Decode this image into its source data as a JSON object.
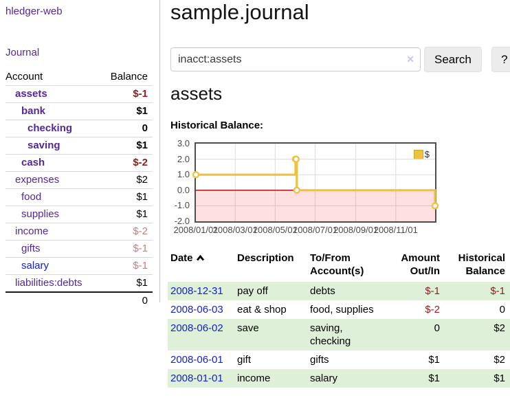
{
  "app": {
    "brand": "hledger-web",
    "nav_journal": "Journal"
  },
  "sidebar": {
    "header": {
      "account": "Account",
      "balance": "Balance"
    },
    "accounts": [
      {
        "name": "assets",
        "indent": 1,
        "balance": "$-1",
        "bold": true
      },
      {
        "name": "bank",
        "indent": 2,
        "balance": "$1",
        "bold": true
      },
      {
        "name": "checking",
        "indent": 3,
        "balance": "0",
        "bold": true
      },
      {
        "name": "saving",
        "indent": 3,
        "balance": "$1",
        "bold": true
      },
      {
        "name": "cash",
        "indent": 2,
        "balance": "$-2",
        "bold": true
      },
      {
        "name": "expenses",
        "indent": 1,
        "balance": "$2"
      },
      {
        "name": "food",
        "indent": 2,
        "balance": "$1"
      },
      {
        "name": "supplies",
        "indent": 2,
        "balance": "$1"
      },
      {
        "name": "income",
        "indent": 1,
        "balance": "$-2"
      },
      {
        "name": "gifts",
        "indent": 2,
        "balance": "$-1"
      },
      {
        "name": "salary",
        "indent": 2,
        "balance": "$-1",
        "unvisited": true
      },
      {
        "name": "liabilities:debts",
        "indent": 1,
        "balance": "$1"
      }
    ],
    "total": "0"
  },
  "header": {
    "title": "sample.journal"
  },
  "search": {
    "value": "inacct:assets",
    "clear_icon": "✕",
    "button_label": "Search",
    "help_label": "?"
  },
  "account_page": {
    "heading": "assets",
    "chart_label": "Historical Balance:"
  },
  "chart_data": {
    "type": "line",
    "title": "Historical Balance",
    "series": [
      {
        "name": "$",
        "color": "#edc240",
        "steps": true,
        "points": [
          [
            "2008-01-01",
            1
          ],
          [
            "2008-06-01",
            2
          ],
          [
            "2008-06-02",
            2
          ],
          [
            "2008-06-03",
            0
          ],
          [
            "2008-12-31",
            -1
          ]
        ]
      }
    ],
    "x_range": [
      "2008-01-01",
      "2008-12-31"
    ],
    "x_ticks": [
      "2008/01/01",
      "2008/03/01",
      "2008/05/01",
      "2008/07/01",
      "2008/09/01",
      "2008/11/01"
    ],
    "y_ticks": [
      3.0,
      2.0,
      1.0,
      0.0,
      -1.0,
      -2.0
    ],
    "ylim": [
      -2,
      3
    ],
    "grid": true,
    "legend": {
      "label": "$",
      "position": "top-right"
    },
    "grid_color": "#dcdcdc",
    "zero_line_color": "#a40000",
    "negative_region_color": "rgba(255,0,0,0.12)"
  },
  "register": {
    "headers": {
      "date": "Date",
      "description": "Description",
      "account": "To/From Account(s)",
      "amount": "Amount Out/In",
      "balance": "Historical Balance"
    },
    "rows": [
      {
        "date": "2008-12-31",
        "description": "pay off",
        "accounts": "debts",
        "amount": "$-1",
        "balance": "$-1"
      },
      {
        "date": "2008-06-03",
        "description": "eat & shop",
        "accounts": "food, supplies",
        "amount": "$-2",
        "balance": "0"
      },
      {
        "date": "2008-06-02",
        "description": "save",
        "accounts": "saving, checking",
        "amount": "0",
        "balance": "$2"
      },
      {
        "date": "2008-06-01",
        "description": "gift",
        "accounts": "gifts",
        "amount": "$1",
        "balance": "$2"
      },
      {
        "date": "2008-01-01",
        "description": "income",
        "accounts": "salary",
        "amount": "$1",
        "balance": "$1"
      }
    ]
  },
  "colors": {
    "accent_purple": "#55279b",
    "link_blue": "#1420d2",
    "negative_strong": "#8f1d1d",
    "negative_weak": "#c08080",
    "row_green": "#dff0d8",
    "chart_gold": "#edc240",
    "zero_line_red": "#a40000"
  }
}
